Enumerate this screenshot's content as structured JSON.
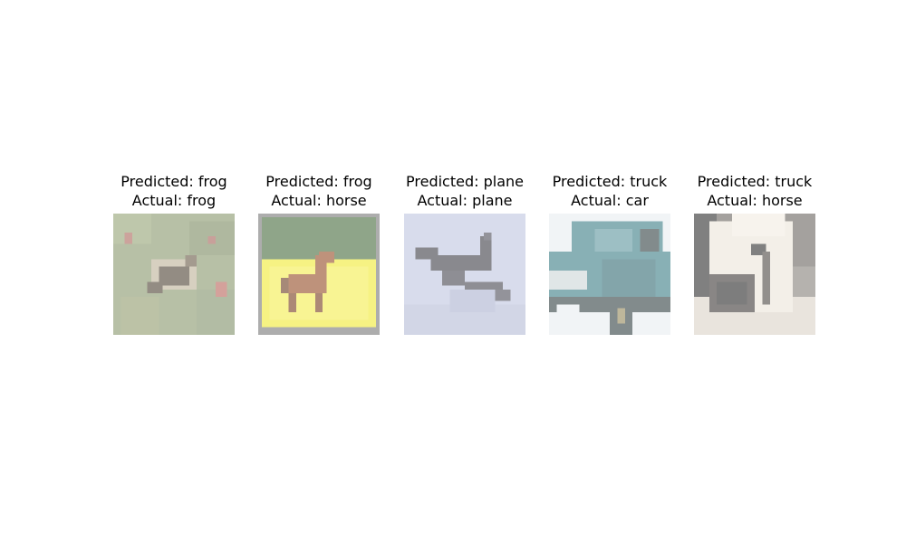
{
  "panels": [
    {
      "predicted_text": "Predicted: frog",
      "actual_text": "Actual: frog",
      "thumb_icon": "frog-photo-icon",
      "colors": {
        "bg": "#7a8a5c",
        "subject": "#3b2f1f",
        "accent": "#b2564a"
      }
    },
    {
      "predicted_text": "Predicted: frog",
      "actual_text": "Actual: horse",
      "thumb_icon": "horse-photo-icon",
      "colors": {
        "bg": "#f0e81e",
        "subject": "#8a3a10",
        "frame": "#6b6b6b",
        "top": "#355d2a"
      }
    },
    {
      "predicted_text": "Predicted: plane",
      "actual_text": "Actual: plane",
      "thumb_icon": "plane-photo-icon",
      "colors": {
        "bg": "#b7bedc",
        "subject": "#2a2a33"
      }
    },
    {
      "predicted_text": "Predicted: truck",
      "actual_text": "Actual: car",
      "thumb_icon": "car-photo-icon",
      "colors": {
        "bg": "#e6ecef",
        "subject": "#27707a",
        "dark": "#1d2d30"
      }
    },
    {
      "predicted_text": "Predicted: truck",
      "actual_text": "Actual: horse",
      "thumb_icon": "horse-head-photo-icon",
      "colors": {
        "bg": "#5a5650",
        "subject": "#eae2d6",
        "dark": "#1a1a1a"
      }
    }
  ]
}
